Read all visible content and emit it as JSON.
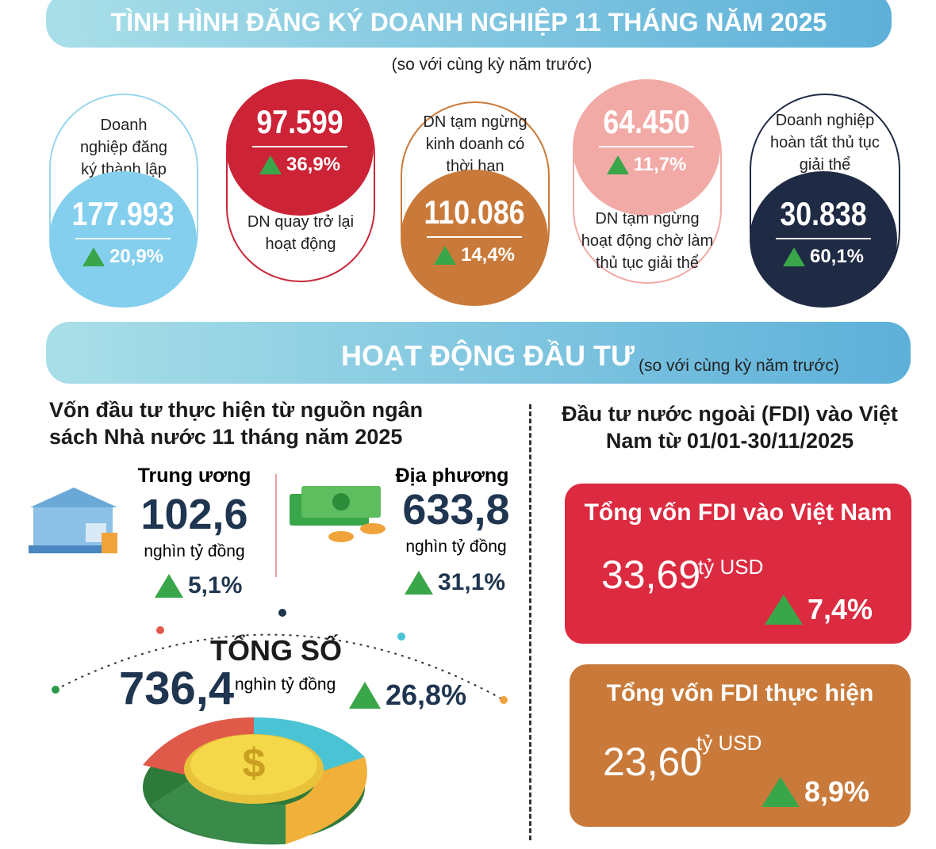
{
  "header": {
    "title": "TÌNH HÌNH ĐĂNG KÝ DOANH NGHIỆP 11 THÁNG  NĂM 2025",
    "subtitle": "(so với cùng kỳ năm trước)"
  },
  "cards": [
    {
      "label": "Doanh nghiệp đăng ký thành lập mới",
      "value": "177.993",
      "change": "20,9%"
    },
    {
      "label": "DN quay trở lại hoạt động",
      "value": "97.599",
      "change": "36,9%"
    },
    {
      "label": "DN tạm ngừng kinh doanh có thời hạn",
      "value": "110.086",
      "change": "14,4%"
    },
    {
      "label": "DN tạm ngừng hoạt động chờ làm thủ tục giải thể",
      "value": "64.450",
      "change": "11,7%"
    },
    {
      "label": "Doanh nghiệp hoàn tất thủ tục giải thể",
      "value": "30.838",
      "change": "60,1%"
    }
  ],
  "investment": {
    "title": "HOẠT ĐỘNG ĐẦU TƯ",
    "note": "(so với cùng kỳ năm trước)"
  },
  "budget": {
    "title": "Vốn đầu tư thực hiện từ nguồn ngân sách Nhà nước 11 tháng năm 2025",
    "central": {
      "label": "Trung ương",
      "value": "102,6",
      "unit": "nghìn tỷ đồng",
      "change": "5,1%"
    },
    "local": {
      "label": "Địa phương",
      "value": "633,8",
      "unit": "nghìn tỷ đồng",
      "change": "31,1%"
    },
    "total": {
      "label": "TỔNG SỐ",
      "value": "736,4",
      "unit": "nghìn tỷ đồng",
      "change": "26,8%"
    }
  },
  "fdi": {
    "title": "Đầu tư nước ngoài (FDI) vào Việt Nam từ 01/01-30/11/2025",
    "registered": {
      "label": "Tổng vốn FDI vào Việt Nam",
      "value": "33,69",
      "unit": "tỷ USD",
      "change": "7,4%"
    },
    "disbursed": {
      "label": "Tổng vốn FDI thực hiện",
      "value": "23,60",
      "unit": "tỷ USD",
      "change": "8,9%"
    }
  }
}
